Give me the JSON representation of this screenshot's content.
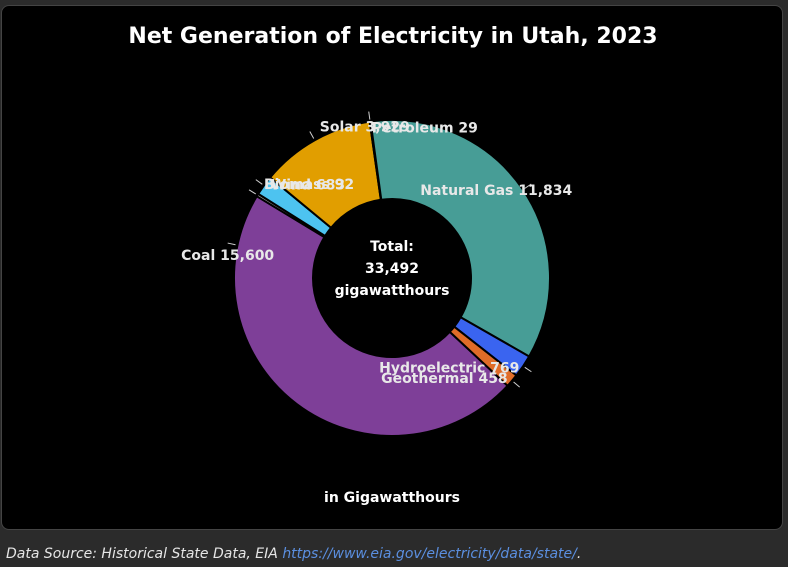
{
  "chart_data": {
    "type": "pie",
    "variant": "donut",
    "title": "Net Generation of Electricity in Utah, 2023",
    "subtitle": "in Gigawatthours",
    "center_label": [
      "Total:",
      "33,492",
      "gigawatthours"
    ],
    "total": 33492,
    "slices": [
      {
        "name": "Coal",
        "value": 15600,
        "label": "Coal 15,600",
        "color": "#7e3f98"
      },
      {
        "name": "Biomass",
        "value": 92,
        "label": "Biomass 92",
        "color": "#b0b0b0"
      },
      {
        "name": "Wind",
        "value": 683,
        "label": "Wind 683",
        "color": "#4dc3f0"
      },
      {
        "name": "Solar",
        "value": 3929,
        "label": "Solar 3,929",
        "color": "#e19e00"
      },
      {
        "name": "Petroleum",
        "value": 29,
        "label": "Petroleum 29",
        "color": "#8b2a1d"
      },
      {
        "name": "Natural Gas",
        "value": 11834,
        "label": "Natural Gas 11,834",
        "color": "#479d96"
      },
      {
        "name": "Hydroelectric",
        "value": 769,
        "label": "Hydroelectric 769",
        "color": "#3a64f0"
      },
      {
        "name": "Geothermal",
        "value": 458,
        "label": "Geothermal 458",
        "color": "#e06c28"
      }
    ]
  },
  "footer": {
    "source_text": "Data Source: Historical State Data, EIA ",
    "url_text": "https://www.eia.gov/electricity/data/state/",
    "trailing": "."
  }
}
